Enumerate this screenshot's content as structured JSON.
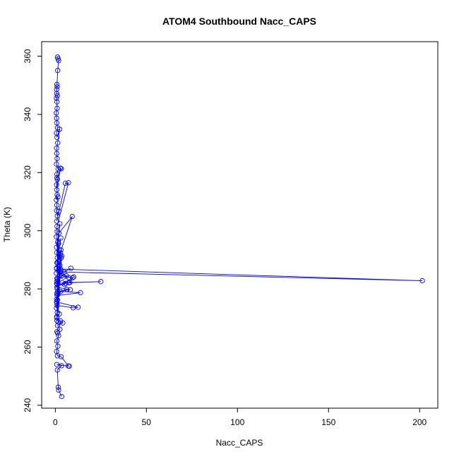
{
  "chart_data": {
    "type": "line",
    "title": "ATOM4 Southbound Nacc_CAPS",
    "xlabel": "Nacc_CAPS",
    "ylabel": "Theta (K)",
    "xlim": [
      -7.5,
      210
    ],
    "ylim": [
      239,
      365
    ],
    "x_ticks": [
      0,
      50,
      100,
      150,
      200
    ],
    "y_ticks": [
      240,
      260,
      280,
      300,
      320,
      340,
      360
    ],
    "x_tick_labels": [
      "0",
      "50",
      "100",
      "150",
      "200"
    ],
    "y_tick_labels": [
      "240",
      "260",
      "280",
      "300",
      "320",
      "340",
      "360"
    ],
    "grid": false,
    "legend": "none",
    "series_color": "#0000ff",
    "series": [
      {
        "marker": "open-circle",
        "x": [
          1.2,
          1.5,
          1.8,
          1.3,
          0.9,
          1.0,
          0.7,
          0.8,
          1.1,
          0.6,
          0.9,
          1.0,
          0.5,
          0.7,
          0.8,
          1.2,
          0.6,
          0.9,
          2.4,
          1.3,
          0.7,
          0.8,
          1.0,
          0.6,
          1.5,
          0.9,
          1.1,
          0.7,
          0.8,
          2.8,
          3.3,
          0.9,
          1.0,
          0.6,
          1.4,
          0.8,
          0.7,
          1.1,
          1.9,
          0.8,
          5.5,
          7.2,
          0.9,
          1.0,
          0.6,
          1.3,
          0.7,
          2.5,
          0.8,
          1.1,
          2.0,
          9.3,
          0.9,
          3.0,
          0.7,
          1.8,
          0.6,
          2.2,
          0.9,
          0.8,
          1.0,
          1.4,
          3.1,
          0.7,
          0.9,
          2.8,
          0.6,
          3.5,
          1.1,
          0.8,
          2.7,
          3.2,
          0.9,
          1.2,
          2.5,
          0.7,
          3.0,
          2.9,
          201.5,
          4.8,
          8.5,
          3.4,
          6.1,
          7.3,
          2.6,
          4.5,
          1.1,
          0.8,
          2.4,
          9.5,
          8.0,
          1.0,
          5.6,
          5.0,
          3.8,
          25.0,
          7.4,
          10.1,
          0.9,
          8.2,
          1.3,
          6.3,
          0.8,
          1.0,
          13.8,
          2.9,
          1.2,
          0.7,
          12.5,
          9.8,
          1.0,
          2.2,
          0.8,
          1.6,
          2.8,
          4.1,
          1.2,
          2.5,
          0.9,
          1.3,
          1.8,
          0.8,
          1.4,
          0.7,
          1.2,
          3.2,
          7.1,
          7.7,
          0.8,
          3.4,
          1.1,
          1.6,
          1.8,
          3.5
        ],
        "y": [
          359.7,
          359.1,
          358.5,
          355.1,
          350.3,
          349.5,
          348.6,
          347.2,
          346.4,
          345.6,
          344.3,
          342.1,
          340.5,
          338.7,
          337.1,
          335.4,
          333.6,
          332.1,
          334.9,
          330.2,
          328.4,
          326.6,
          324.8,
          322.9,
          321.2,
          319.4,
          317.6,
          315.8,
          314.1,
          321.5,
          321.3,
          318.2,
          312.4,
          310.6,
          311.6,
          308.8,
          306.9,
          305.1,
          306.7,
          303.3,
          316.3,
          316.5,
          301.5,
          299.7,
          297.9,
          296.1,
          294.3,
          302.4,
          292.5,
          290.7,
          299.2,
          304.9,
          289.0,
          297.5,
          287.2,
          295.6,
          285.4,
          293.3,
          283.6,
          281.8,
          280.0,
          278.2,
          293.4,
          276.4,
          275.0,
          292.3,
          273.4,
          291.3,
          271.9,
          270.5,
          291.5,
          290.6,
          269.1,
          288.9,
          288.1,
          287.0,
          286.3,
          286.8,
          282.8,
          285.8,
          287.1,
          285.4,
          284.5,
          283.9,
          285.8,
          284.1,
          283.3,
          282.6,
          284.7,
          283.8,
          282.2,
          281.5,
          281.9,
          281.5,
          282.1,
          282.5,
          282.1,
          284.1,
          280.6,
          279.7,
          279.0,
          279.8,
          278.4,
          277.7,
          278.7,
          279.1,
          276.2,
          275.5,
          273.7,
          273.5,
          274.3,
          271.4,
          270.1,
          268.6,
          269.0,
          268.3,
          267.4,
          266.1,
          265.3,
          264.8,
          263.9,
          262.1,
          260.3,
          258.5,
          257.0,
          256.7,
          253.5,
          253.4,
          254.0,
          253.6,
          252.1,
          246.2,
          245.2,
          243.0
        ]
      }
    ]
  }
}
